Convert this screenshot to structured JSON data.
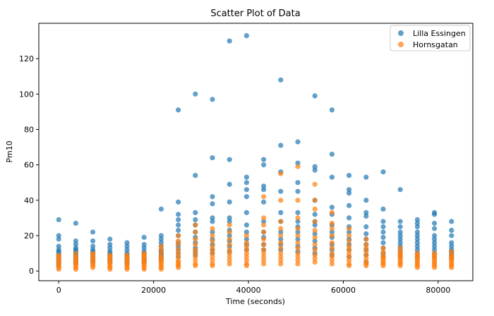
{
  "chart_data": {
    "type": "scatter",
    "title": "Scatter Plot of Data",
    "xlabel": "Time (seconds)",
    "ylabel": "Pm10",
    "xlim": [
      -4200,
      87300
    ],
    "ylim": [
      -5.5,
      140
    ],
    "xticks": [
      0,
      20000,
      40000,
      60000,
      80000
    ],
    "yticks": [
      0,
      20,
      40,
      60,
      80,
      100,
      120
    ],
    "legend_position": "top-right",
    "grid": false,
    "times": [
      0,
      3600,
      7200,
      10800,
      14400,
      18000,
      21600,
      25200,
      28800,
      32400,
      36000,
      39600,
      43200,
      46800,
      50400,
      54000,
      57600,
      61200,
      64800,
      68400,
      72000,
      75600,
      79200,
      82800
    ],
    "series": [
      {
        "name": "Lilla Essingen",
        "color": "#1f77b4",
        "points": [
          [
            0,
            [
              29,
              20,
              18,
              14,
              12,
              11,
              10,
              9,
              8,
              7,
              6,
              5,
              4,
              3
            ]
          ],
          [
            3600,
            [
              27,
              17,
              15,
              13,
              12,
              11,
              10,
              9,
              8,
              7,
              6,
              5,
              4
            ]
          ],
          [
            7200,
            [
              22,
              17,
              14,
              12,
              11,
              10,
              9,
              8,
              7,
              6,
              5
            ]
          ],
          [
            10800,
            [
              18,
              15,
              13,
              11,
              10,
              9,
              8,
              7,
              6,
              5
            ]
          ],
          [
            14400,
            [
              16,
              14,
              12,
              10,
              9,
              8,
              7,
              6,
              5,
              4
            ]
          ],
          [
            18000,
            [
              19,
              15,
              13,
              11,
              10,
              9,
              8,
              7,
              6,
              5
            ]
          ],
          [
            21600,
            [
              35,
              20,
              18,
              16,
              14,
              12,
              11,
              10,
              9,
              8,
              7,
              6
            ]
          ],
          [
            25200,
            [
              91,
              39,
              32,
              29,
              26,
              23,
              20,
              16,
              14,
              12,
              10,
              8
            ]
          ],
          [
            28800,
            [
              100,
              54,
              33,
              29,
              26,
              22,
              19,
              16,
              13,
              11,
              9
            ]
          ],
          [
            32400,
            [
              97,
              64,
              42,
              38,
              30,
              28,
              22,
              18,
              15,
              12,
              10
            ]
          ],
          [
            36000,
            [
              130,
              63,
              49,
              39,
              30,
              28,
              23,
              20,
              17,
              14,
              11
            ]
          ],
          [
            39600,
            [
              133,
              53,
              50,
              46,
              42,
              33,
              26,
              22,
              18,
              15,
              12
            ]
          ],
          [
            43200,
            [
              63,
              60,
              48,
              46,
              39,
              28,
              22,
              19,
              15,
              12
            ]
          ],
          [
            46800,
            [
              108,
              71,
              56,
              45,
              33,
              28,
              22,
              18,
              15,
              12
            ]
          ],
          [
            50400,
            [
              73,
              61,
              50,
              45,
              33,
              28,
              25,
              22,
              18,
              14,
              11
            ]
          ],
          [
            54000,
            [
              99,
              59,
              57,
              40,
              32,
              28,
              26,
              21,
              17,
              13,
              10
            ]
          ],
          [
            57600,
            [
              91,
              66,
              53,
              36,
              32,
              26,
              22,
              19,
              15,
              12,
              9
            ]
          ],
          [
            61200,
            [
              54,
              46,
              44,
              37,
              30,
              25,
              22,
              18,
              15,
              12,
              8
            ]
          ],
          [
            64800,
            [
              53,
              40,
              33,
              31,
              25,
              21,
              18,
              15,
              12,
              9,
              5
            ]
          ],
          [
            68400,
            [
              56,
              35,
              28,
              25,
              22,
              19,
              16,
              13,
              10,
              8
            ]
          ],
          [
            72000,
            [
              46,
              28,
              25,
              22,
              20,
              18,
              16,
              14,
              12,
              10,
              8
            ]
          ],
          [
            75600,
            [
              29,
              27,
              25,
              22,
              20,
              18,
              16,
              14,
              12,
              10,
              8
            ]
          ],
          [
            79200,
            [
              33,
              32,
              27,
              24,
              20,
              18,
              16,
              14,
              12,
              10,
              8
            ]
          ],
          [
            82800,
            [
              28,
              23,
              20,
              16,
              14,
              12,
              11,
              10,
              9,
              8,
              7
            ]
          ]
        ]
      },
      {
        "name": "Hornsgatan",
        "color": "#ff7f0e",
        "points": [
          [
            0,
            [
              9,
              8,
              7,
              6,
              5,
              4,
              3,
              2,
              1
            ]
          ],
          [
            3600,
            [
              10,
              8,
              7,
              6,
              5,
              4,
              3,
              2,
              1
            ]
          ],
          [
            7200,
            [
              10,
              9,
              8,
              7,
              6,
              5,
              4,
              3,
              2
            ]
          ],
          [
            10800,
            [
              9,
              8,
              7,
              6,
              5,
              4,
              3,
              2,
              1
            ]
          ],
          [
            14400,
            [
              9,
              8,
              7,
              6,
              5,
              4,
              3,
              2,
              1
            ]
          ],
          [
            18000,
            [
              10,
              9,
              8,
              7,
              6,
              5,
              4,
              3,
              2,
              1
            ]
          ],
          [
            21600,
            [
              14,
              12,
              10,
              8,
              7,
              6,
              5,
              4,
              3,
              2,
              1
            ]
          ],
          [
            25200,
            [
              20,
              17,
              15,
              12,
              10,
              8,
              6,
              5,
              4,
              3,
              2
            ]
          ],
          [
            28800,
            [
              26,
              22,
              18,
              15,
              12,
              10,
              8,
              6,
              4,
              3
            ]
          ],
          [
            32400,
            [
              24,
              20,
              17,
              14,
              12,
              10,
              8,
              6,
              4,
              3
            ]
          ],
          [
            36000,
            [
              26,
              22,
              18,
              15,
              12,
              10,
              8,
              6,
              4
            ]
          ],
          [
            39600,
            [
              20,
              16,
              14,
              12,
              10,
              8,
              6,
              4,
              3
            ]
          ],
          [
            43200,
            [
              42,
              30,
              26,
              22,
              18,
              15,
              12,
              10,
              8,
              6,
              4
            ]
          ],
          [
            46800,
            [
              55,
              40,
              28,
              24,
              20,
              16,
              13,
              10,
              8,
              6,
              4
            ]
          ],
          [
            50400,
            [
              59,
              40,
              30,
              24,
              20,
              16,
              13,
              10,
              8,
              6,
              4
            ]
          ],
          [
            54000,
            [
              49,
              40,
              35,
              28,
              23,
              19,
              15,
              12,
              9,
              7,
              5
            ]
          ],
          [
            57600,
            [
              33,
              27,
              24,
              20,
              16,
              13,
              10,
              8,
              6,
              4
            ]
          ],
          [
            61200,
            [
              24,
              20,
              17,
              14,
              12,
              10,
              8,
              6,
              4,
              3
            ]
          ],
          [
            64800,
            [
              18,
              15,
              13,
              11,
              9,
              7,
              5,
              4,
              3
            ]
          ],
          [
            68400,
            [
              13,
              11,
              9,
              8,
              7,
              6,
              5,
              4,
              3
            ]
          ],
          [
            72000,
            [
              13,
              11,
              10,
              9,
              8,
              7,
              6,
              5,
              4,
              3
            ]
          ],
          [
            75600,
            [
              10,
              9,
              8,
              7,
              6,
              5,
              4,
              3,
              2
            ]
          ],
          [
            79200,
            [
              10,
              9,
              8,
              7,
              6,
              5,
              4,
              3,
              2
            ]
          ],
          [
            82800,
            [
              11,
              9,
              8,
              7,
              6,
              5,
              4,
              3,
              2
            ]
          ]
        ]
      }
    ]
  }
}
